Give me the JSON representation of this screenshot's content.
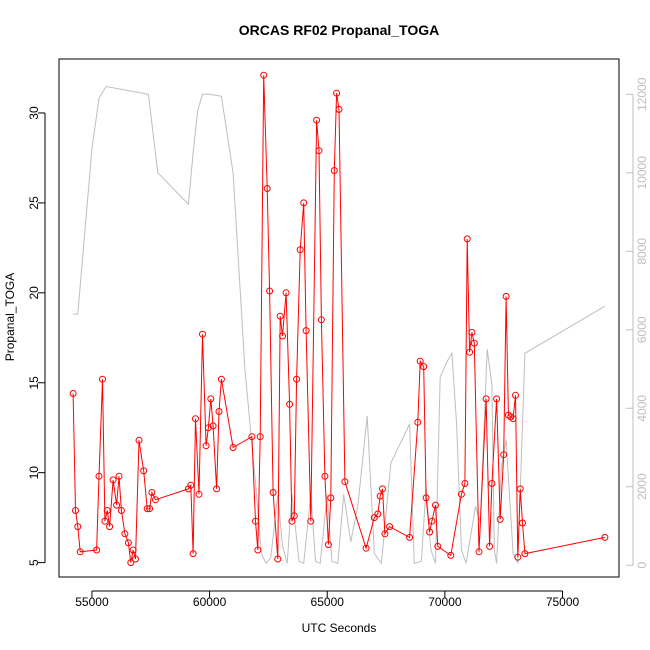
{
  "chart_data": {
    "type": "line",
    "title": "ORCAS RF02 Propanal_TOGA",
    "xlabel": "UTC Seconds",
    "ylabel": "Propanal_TOGA",
    "xlim": [
      53600,
      77400
    ],
    "ylim": [
      4.2,
      33.0
    ],
    "x_ticks": [
      55000,
      60000,
      65000,
      70000,
      75000
    ],
    "y_ticks": [
      5,
      10,
      15,
      20,
      25,
      30
    ],
    "y2lim": [
      -300,
      12900
    ],
    "y2_ticks": [
      0,
      2000,
      4000,
      6000,
      8000,
      10000,
      12000
    ],
    "colors": {
      "primary": "#ff0000",
      "secondary": "#bebebe",
      "axis": "#000000",
      "axis2": "#bebebe"
    },
    "series": [
      {
        "role": "primary",
        "points": [
          [
            54200,
            14.4
          ],
          [
            54300,
            7.9
          ],
          [
            54400,
            7.0
          ],
          [
            54500,
            5.6
          ],
          [
            55200,
            5.7
          ],
          [
            55300,
            9.8
          ],
          [
            55450,
            15.2
          ],
          [
            55550,
            7.3
          ],
          [
            55650,
            7.9
          ],
          [
            55750,
            7.0
          ],
          [
            55900,
            9.6
          ],
          [
            56050,
            8.2
          ],
          [
            56150,
            9.8
          ],
          [
            56250,
            7.9
          ],
          [
            56400,
            6.6
          ],
          [
            56550,
            6.1
          ],
          [
            56650,
            5.0
          ],
          [
            56750,
            5.7
          ],
          [
            56850,
            5.2
          ],
          [
            57000,
            11.8
          ],
          [
            57200,
            10.1
          ],
          [
            57350,
            8.0
          ],
          [
            57450,
            8.0
          ],
          [
            57550,
            8.9
          ],
          [
            57700,
            8.5
          ],
          [
            59100,
            9.1
          ],
          [
            59200,
            9.3
          ],
          [
            59300,
            5.5
          ],
          [
            59400,
            13.0
          ],
          [
            59550,
            8.8
          ],
          [
            59700,
            17.7
          ],
          [
            59850,
            11.5
          ],
          [
            59950,
            12.5
          ],
          [
            60050,
            14.1
          ],
          [
            60150,
            12.6
          ],
          [
            60300,
            9.1
          ],
          [
            60400,
            13.4
          ],
          [
            60500,
            15.2
          ],
          [
            61000,
            11.4
          ],
          [
            61800,
            12.0
          ],
          [
            61950,
            7.3
          ],
          [
            62050,
            5.7
          ],
          [
            62150,
            12.0
          ],
          [
            62300,
            32.1
          ],
          [
            62450,
            25.8
          ],
          [
            62550,
            20.1
          ],
          [
            62700,
            8.9
          ],
          [
            62900,
            5.2
          ],
          [
            63000,
            18.7
          ],
          [
            63100,
            17.6
          ],
          [
            63250,
            20.0
          ],
          [
            63400,
            13.8
          ],
          [
            63500,
            7.3
          ],
          [
            63600,
            7.6
          ],
          [
            63700,
            15.2
          ],
          [
            63850,
            22.4
          ],
          [
            64000,
            25.0
          ],
          [
            64100,
            17.9
          ],
          [
            64300,
            7.3
          ],
          [
            64550,
            29.6
          ],
          [
            64650,
            27.9
          ],
          [
            64750,
            18.5
          ],
          [
            64900,
            9.8
          ],
          [
            65050,
            6.0
          ],
          [
            65150,
            8.6
          ],
          [
            65300,
            26.8
          ],
          [
            65400,
            31.1
          ],
          [
            65500,
            30.2
          ],
          [
            65750,
            9.5
          ],
          [
            66650,
            5.8
          ],
          [
            67000,
            7.5
          ],
          [
            67150,
            7.7
          ],
          [
            67250,
            8.7
          ],
          [
            67350,
            9.1
          ],
          [
            67450,
            6.6
          ],
          [
            67650,
            7.0
          ],
          [
            68500,
            6.4
          ],
          [
            68850,
            12.8
          ],
          [
            68950,
            16.2
          ],
          [
            69100,
            15.9
          ],
          [
            69200,
            8.6
          ],
          [
            69350,
            6.7
          ],
          [
            69450,
            7.3
          ],
          [
            69600,
            8.2
          ],
          [
            69700,
            5.9
          ],
          [
            70250,
            5.4
          ],
          [
            70700,
            8.8
          ],
          [
            70850,
            9.4
          ],
          [
            70950,
            23.0
          ],
          [
            71050,
            16.7
          ],
          [
            71150,
            17.8
          ],
          [
            71250,
            17.2
          ],
          [
            71450,
            5.6
          ],
          [
            71750,
            14.1
          ],
          [
            71900,
            5.9
          ],
          [
            72000,
            9.4
          ],
          [
            72200,
            14.1
          ],
          [
            72350,
            7.4
          ],
          [
            72500,
            11.0
          ],
          [
            72600,
            19.8
          ],
          [
            72700,
            13.2
          ],
          [
            72800,
            13.1
          ],
          [
            72900,
            13.0
          ],
          [
            73000,
            14.3
          ],
          [
            73100,
            5.3
          ],
          [
            73200,
            9.1
          ],
          [
            73300,
            7.2
          ],
          [
            73400,
            5.5
          ],
          [
            76800,
            6.4
          ]
        ]
      },
      {
        "role": "secondary",
        "points": [
          [
            54200,
            6400
          ],
          [
            54400,
            6400
          ],
          [
            55000,
            10600
          ],
          [
            55300,
            11900
          ],
          [
            55600,
            12200
          ],
          [
            57400,
            12000
          ],
          [
            57800,
            10000
          ],
          [
            59100,
            9200
          ],
          [
            59300,
            10500
          ],
          [
            59500,
            11600
          ],
          [
            59700,
            12000
          ],
          [
            60000,
            12000
          ],
          [
            60500,
            11950
          ],
          [
            61000,
            10000
          ],
          [
            61500,
            5000
          ],
          [
            62000,
            1800
          ],
          [
            62200,
            300
          ],
          [
            62400,
            50
          ],
          [
            62600,
            200
          ],
          [
            62900,
            1800
          ],
          [
            63100,
            500
          ],
          [
            63300,
            50
          ],
          [
            63500,
            1800
          ],
          [
            63800,
            100
          ],
          [
            64000,
            50
          ],
          [
            64300,
            1800
          ],
          [
            64500,
            100
          ],
          [
            64700,
            50
          ],
          [
            65000,
            1800
          ],
          [
            65200,
            100
          ],
          [
            65450,
            50
          ],
          [
            65700,
            1800
          ],
          [
            66000,
            600
          ],
          [
            66300,
            1500
          ],
          [
            66700,
            3800
          ],
          [
            67000,
            300
          ],
          [
            67300,
            50
          ],
          [
            67700,
            2600
          ],
          [
            68500,
            3600
          ],
          [
            68700,
            50
          ],
          [
            69000,
            100
          ],
          [
            69200,
            2000
          ],
          [
            69400,
            400
          ],
          [
            69600,
            50
          ],
          [
            69800,
            4800
          ],
          [
            70100,
            5200
          ],
          [
            70300,
            5400
          ],
          [
            70500,
            3600
          ],
          [
            70700,
            400
          ],
          [
            70900,
            50
          ],
          [
            71300,
            1500
          ],
          [
            71500,
            1100
          ],
          [
            71800,
            5500
          ],
          [
            72000,
            4600
          ],
          [
            72100,
            400
          ],
          [
            72200,
            50
          ],
          [
            72400,
            2500
          ],
          [
            72600,
            3200
          ],
          [
            72900,
            300
          ],
          [
            73100,
            50
          ],
          [
            73400,
            5400
          ],
          [
            76800,
            6600
          ]
        ]
      }
    ]
  }
}
